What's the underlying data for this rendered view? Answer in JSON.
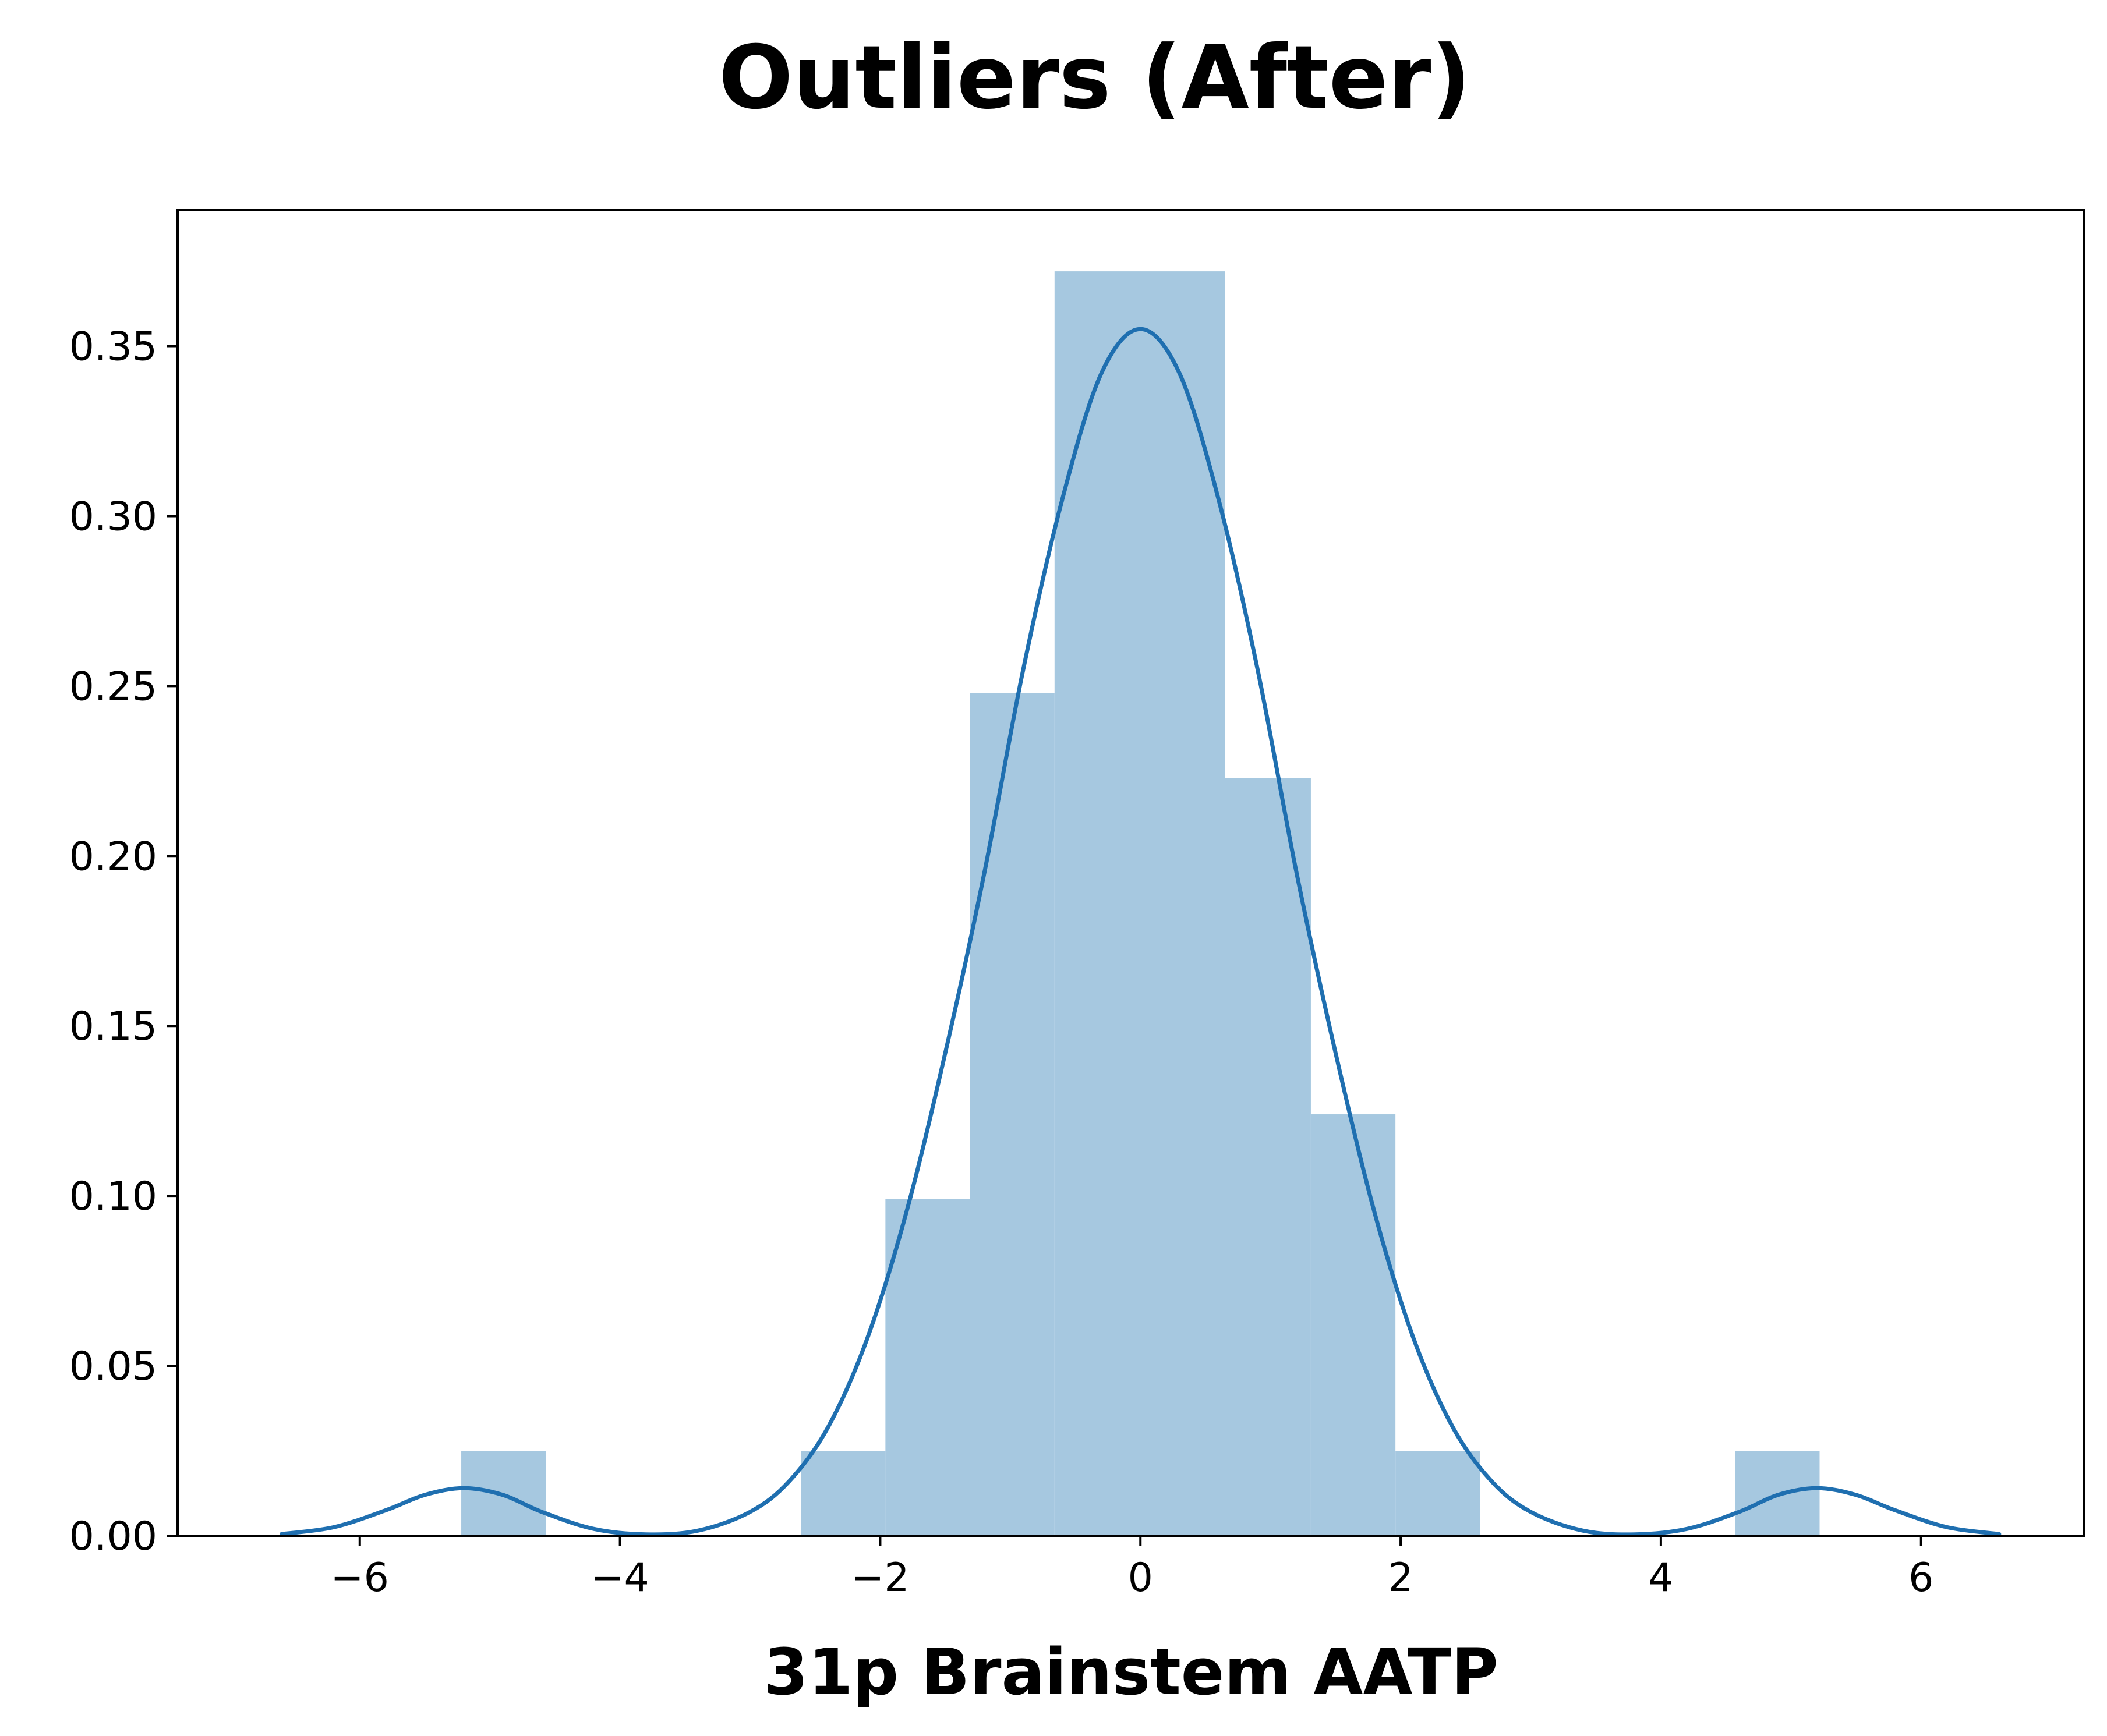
{
  "chart_data": {
    "type": "bar",
    "title": "Outliers (After)",
    "xlabel": "31p Brainstem AATP",
    "ylabel": "",
    "xlim": [
      -7.4,
      7.25
    ],
    "ylim": [
      0,
      0.39
    ],
    "xticks": [
      -6,
      -4,
      -2,
      0,
      2,
      4,
      6
    ],
    "xtick_labels": [
      "−6",
      "−4",
      "−2",
      "0",
      "2",
      "4",
      "6"
    ],
    "yticks": [
      0.0,
      0.05,
      0.1,
      0.15,
      0.2,
      0.25,
      0.3,
      0.35
    ],
    "ytick_labels": [
      "0.00",
      "0.05",
      "0.10",
      "0.15",
      "0.20",
      "0.25",
      "0.30",
      "0.35"
    ],
    "grid": false,
    "series": [
      {
        "name": "histogram",
        "kind": "bar",
        "color": "#a6c8e0",
        "bins": [
          {
            "x0": -5.22,
            "x1": -4.57,
            "density": 0.025
          },
          {
            "x0": -2.61,
            "x1": -1.96,
            "density": 0.025
          },
          {
            "x0": -1.96,
            "x1": -1.31,
            "density": 0.099
          },
          {
            "x0": -1.31,
            "x1": -0.66,
            "density": 0.248
          },
          {
            "x0": -0.66,
            "x1": 0.65,
            "density": 0.372
          },
          {
            "x0": 0.65,
            "x1": 1.31,
            "density": 0.223
          },
          {
            "x0": 1.31,
            "x1": 1.96,
            "density": 0.124
          },
          {
            "x0": 1.96,
            "x1": 2.61,
            "density": 0.025
          },
          {
            "x0": 4.57,
            "x1": 5.22,
            "density": 0.025
          }
        ]
      },
      {
        "name": "kde",
        "kind": "line",
        "color": "#1f6fb0",
        "x": [
          -6.6,
          -6.2,
          -5.8,
          -5.5,
          -5.2,
          -4.9,
          -4.6,
          -4.2,
          -3.8,
          -3.4,
          -3.0,
          -2.7,
          -2.4,
          -2.1,
          -1.8,
          -1.5,
          -1.2,
          -0.9,
          -0.6,
          -0.3,
          0.0,
          0.3,
          0.6,
          0.9,
          1.2,
          1.5,
          1.8,
          2.1,
          2.4,
          2.7,
          3.0,
          3.4,
          3.8,
          4.2,
          4.6,
          4.9,
          5.2,
          5.5,
          5.8,
          6.2,
          6.6
        ],
        "y": [
          0.0005,
          0.0025,
          0.0075,
          0.012,
          0.014,
          0.012,
          0.007,
          0.002,
          0.0004,
          0.0015,
          0.007,
          0.016,
          0.032,
          0.058,
          0.095,
          0.142,
          0.195,
          0.255,
          0.305,
          0.342,
          0.355,
          0.342,
          0.305,
          0.255,
          0.195,
          0.142,
          0.095,
          0.058,
          0.032,
          0.016,
          0.007,
          0.0015,
          0.0004,
          0.002,
          0.007,
          0.012,
          0.014,
          0.012,
          0.0075,
          0.0025,
          0.0005
        ]
      }
    ]
  }
}
